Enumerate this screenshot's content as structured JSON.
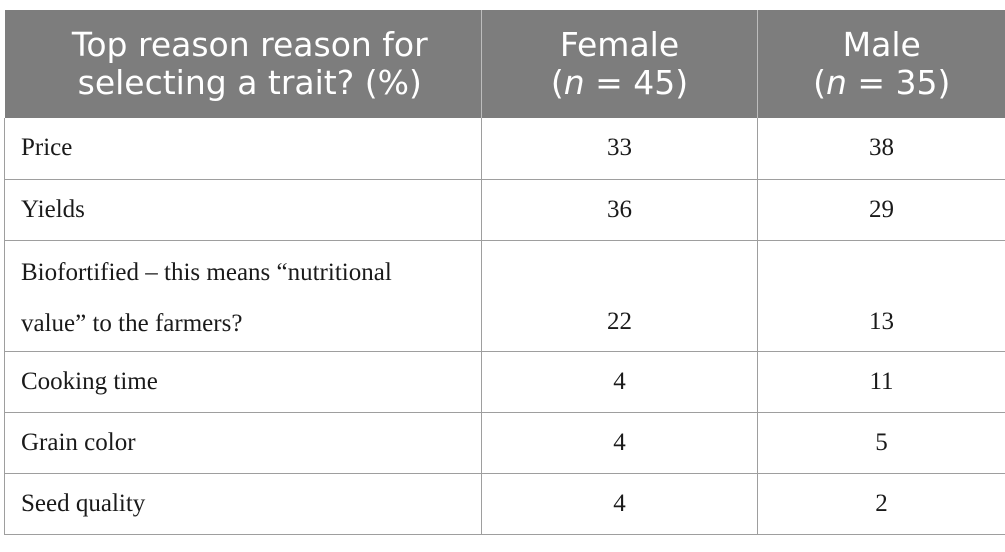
{
  "header": {
    "col1_line1": "Top reason reason for",
    "col1_line2": "selecting a trait? (%)",
    "female_label": "Female",
    "female_n_prefix": "(",
    "female_n_var": "n",
    "female_n_suffix": " = 45)",
    "male_label": "Male",
    "male_n_prefix": "(",
    "male_n_var": "n",
    "male_n_suffix": " = 35)"
  },
  "rows": [
    {
      "reason": "Price",
      "female": "33",
      "male": "38"
    },
    {
      "reason": "Yields",
      "female": "36",
      "male": "29"
    },
    {
      "reason_line1": "Biofortified – this means “nutritional",
      "reason_line2": "value” to the farmers?",
      "female": "22",
      "male": "13"
    },
    {
      "reason": "Cooking time",
      "female": "4",
      "male": "11"
    },
    {
      "reason": "Grain color",
      "female": "4",
      "male": "5"
    },
    {
      "reason": "Seed quality",
      "female": "4",
      "male": "2"
    }
  ]
}
